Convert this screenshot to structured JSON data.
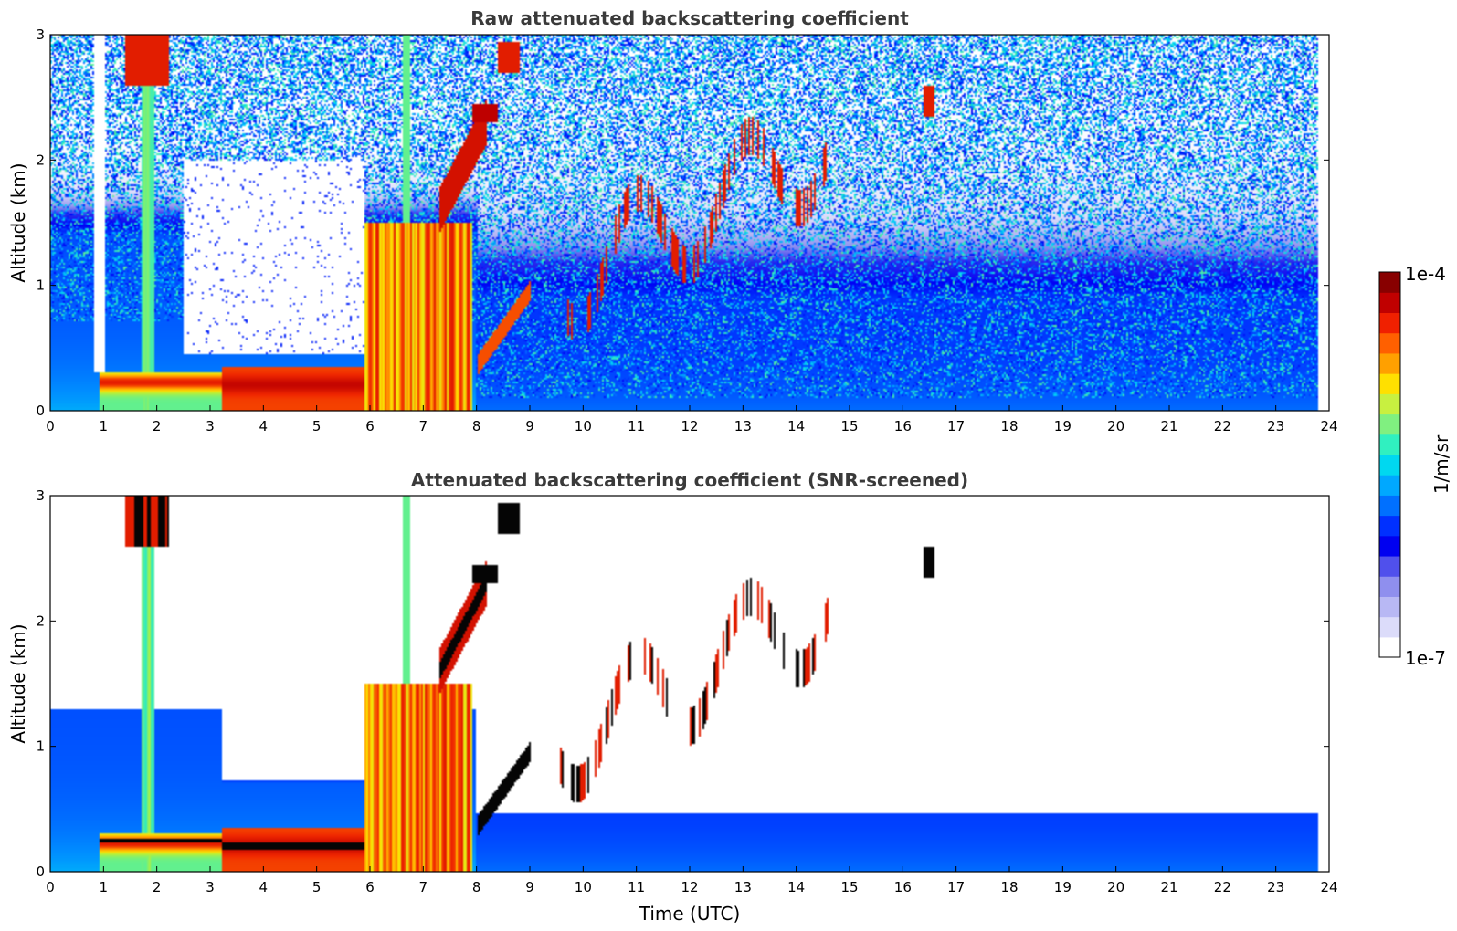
{
  "chart_data": [
    {
      "type": "heatmap",
      "title": "Raw attenuated backscattering coefficient",
      "xlabel": "",
      "ylabel": "Altitude (km)",
      "xlim": [
        0,
        24
      ],
      "ylim": [
        0,
        3
      ],
      "xticks": [
        "0",
        "1",
        "2",
        "3",
        "4",
        "5",
        "6",
        "7",
        "8",
        "9",
        "10",
        "11",
        "12",
        "13",
        "14",
        "15",
        "16",
        "17",
        "18",
        "19",
        "20",
        "21",
        "22",
        "23",
        "24"
      ],
      "yticks": [
        "0",
        "1",
        "2",
        "3"
      ],
      "screened": false
    },
    {
      "type": "heatmap",
      "title": "Attenuated backscattering coefficient (SNR-screened)",
      "xlabel": "Time (UTC)",
      "ylabel": "Altitude (km)",
      "xlim": [
        0,
        24
      ],
      "ylim": [
        0,
        3
      ],
      "xticks": [
        "0",
        "1",
        "2",
        "3",
        "4",
        "5",
        "6",
        "7",
        "8",
        "9",
        "10",
        "11",
        "12",
        "13",
        "14",
        "15",
        "16",
        "17",
        "18",
        "19",
        "20",
        "21",
        "22",
        "23",
        "24"
      ],
      "yticks": [
        "0",
        "1",
        "2",
        "3"
      ],
      "screened": true
    }
  ],
  "colorbar": {
    "label": "1/m/sr",
    "max_label": "1e-4",
    "min_label": "1e-7",
    "colors": [
      "#ffffff",
      "#dcdcfa",
      "#b8b8f4",
      "#8f8fee",
      "#5050ec",
      "#0000f0",
      "#0030ff",
      "#0070ff",
      "#00a8ff",
      "#00d8f0",
      "#30f0c0",
      "#80f080",
      "#c8f040",
      "#ffe000",
      "#ffa000",
      "#ff6000",
      "#f02000",
      "#c00000",
      "#880000"
    ]
  }
}
